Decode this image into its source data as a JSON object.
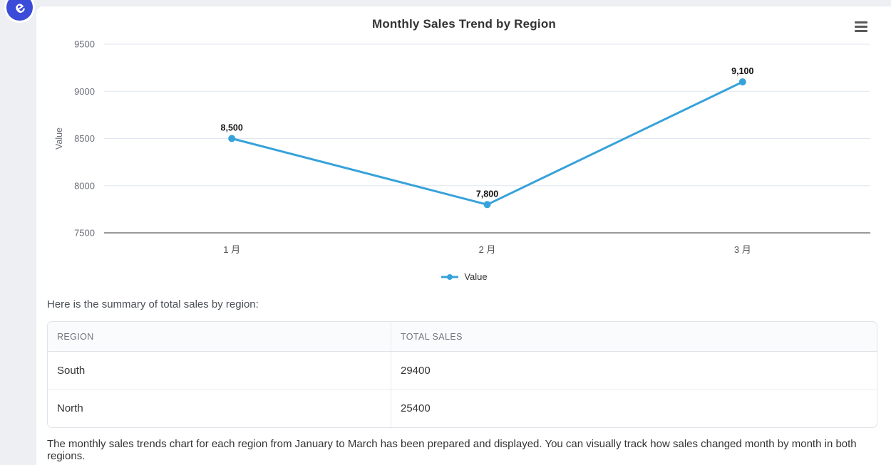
{
  "app": {
    "logo_letter": "e",
    "logo_color": "#3b4cd8"
  },
  "chart": {
    "title": "Monthly Sales Trend by Region",
    "toolbox_icon": "hamburger-menu-icon"
  },
  "chart_data": {
    "type": "line",
    "title": "Monthly Sales Trend by Region",
    "categories": [
      "1 月",
      "2 月",
      "3 月"
    ],
    "series": [
      {
        "name": "Value",
        "values": [
          8500,
          7800,
          9100
        ],
        "color": "#37a2da"
      }
    ],
    "point_labels": [
      "8,500",
      "7,800",
      "9,100"
    ],
    "xlabel": "",
    "ylabel": "Value",
    "ylim": [
      7500,
      9500
    ],
    "yticks": [
      7500,
      8000,
      8500,
      9000,
      9500
    ],
    "grid": true,
    "legend_position": "bottom",
    "legend_entries": [
      "Value"
    ],
    "colors": {
      "line": "#37a2da",
      "grid_line": "#e0e6f1",
      "axis_line": "#333333",
      "tick_label": "#6e7079",
      "point_label": "#111111"
    }
  },
  "summary": {
    "intro_text": "Here is the summary of total sales by region:",
    "table": {
      "headers": [
        "REGION",
        "TOTAL SALES"
      ],
      "rows": [
        {
          "region": "South",
          "total_sales": "29400"
        },
        {
          "region": "North",
          "total_sales": "25400"
        }
      ]
    },
    "closing_text": "The monthly sales trends chart for each region from January to March has been prepared and displayed. You can visually track how sales changed month by month in both regions."
  }
}
